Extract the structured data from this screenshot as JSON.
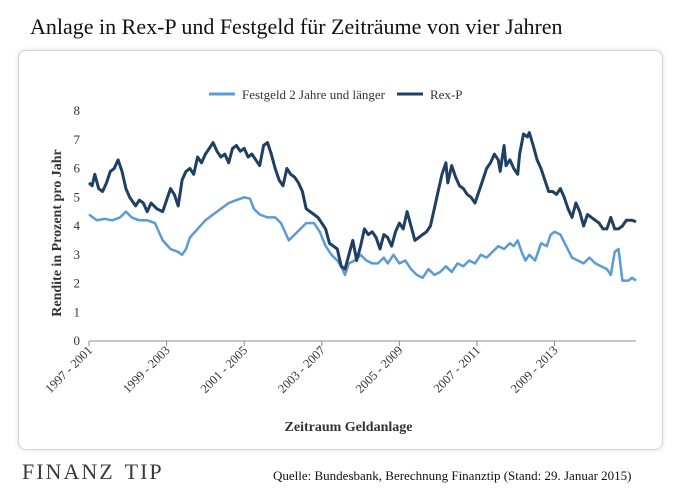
{
  "header": {
    "title": "Anlage  in Rex-P  und Festgeld  für Zeiträume  von vier Jahren"
  },
  "footer": {
    "logo_left": "FINANZ",
    "logo_right": "TIP",
    "source": "Quelle:  Bundesbank, Berechnung Finanztip  (Stand:  29.  Januar 2015)"
  },
  "colors": {
    "festgeld": "#5b9bd5",
    "rexp": "#1f3f63",
    "axis": "#888888",
    "text": "#333333"
  },
  "chart_data": {
    "type": "line",
    "title": "Anlage  in Rex-P  und Festgeld  für Zeiträume  von vier Jahren",
    "xlabel": "Zeitraum Geldanlage",
    "ylabel": "Rendite in Prozent  pro Jahr",
    "ylim": [
      0,
      8
    ],
    "yticks": [
      0,
      1,
      2,
      3,
      4,
      5,
      6,
      7,
      8
    ],
    "xlim": [
      1997,
      2011.1
    ],
    "xticks": [
      {
        "x": 1997,
        "label": "1997 - 2001"
      },
      {
        "x": 1999,
        "label": "1999 - 2003"
      },
      {
        "x": 2001,
        "label": "2001 - 2005"
      },
      {
        "x": 2003,
        "label": "2003 - 2007"
      },
      {
        "x": 2005,
        "label": "2005 - 2009"
      },
      {
        "x": 2007,
        "label": "2007 - 2011"
      },
      {
        "x": 2009,
        "label": "2009 - 2013"
      }
    ],
    "legend_position": "top",
    "series": [
      {
        "name": "Festgeld 2 Jahre und länger",
        "color": "#5b9bd5",
        "points": [
          [
            1997.0,
            4.4
          ],
          [
            1997.2,
            4.2
          ],
          [
            1997.4,
            4.25
          ],
          [
            1997.6,
            4.2
          ],
          [
            1997.8,
            4.3
          ],
          [
            1997.95,
            4.5
          ],
          [
            1998.1,
            4.3
          ],
          [
            1998.3,
            4.2
          ],
          [
            1998.5,
            4.2
          ],
          [
            1998.7,
            4.1
          ],
          [
            1998.8,
            3.8
          ],
          [
            1998.9,
            3.5
          ],
          [
            1999.1,
            3.2
          ],
          [
            1999.3,
            3.1
          ],
          [
            1999.4,
            3.0
          ],
          [
            1999.5,
            3.2
          ],
          [
            1999.6,
            3.6
          ],
          [
            1999.8,
            3.9
          ],
          [
            2000.0,
            4.2
          ],
          [
            2000.2,
            4.4
          ],
          [
            2000.4,
            4.6
          ],
          [
            2000.6,
            4.8
          ],
          [
            2000.8,
            4.9
          ],
          [
            2001.0,
            5.0
          ],
          [
            2001.15,
            4.95
          ],
          [
            2001.25,
            4.6
          ],
          [
            2001.4,
            4.4
          ],
          [
            2001.6,
            4.3
          ],
          [
            2001.8,
            4.3
          ],
          [
            2001.95,
            4.1
          ],
          [
            2002.05,
            3.8
          ],
          [
            2002.15,
            3.5
          ],
          [
            2002.3,
            3.7
          ],
          [
            2002.45,
            3.9
          ],
          [
            2002.6,
            4.1
          ],
          [
            2002.8,
            4.1
          ],
          [
            2002.95,
            3.8
          ],
          [
            2003.1,
            3.3
          ],
          [
            2003.25,
            3.0
          ],
          [
            2003.4,
            2.8
          ],
          [
            2003.5,
            2.6
          ],
          [
            2003.6,
            2.3
          ],
          [
            2003.7,
            2.7
          ],
          [
            2003.85,
            2.8
          ],
          [
            2004.0,
            3.0
          ],
          [
            2004.15,
            2.8
          ],
          [
            2004.3,
            2.7
          ],
          [
            2004.45,
            2.7
          ],
          [
            2004.6,
            2.9
          ],
          [
            2004.7,
            2.7
          ],
          [
            2004.85,
            3.0
          ],
          [
            2005.0,
            2.7
          ],
          [
            2005.15,
            2.8
          ],
          [
            2005.3,
            2.5
          ],
          [
            2005.45,
            2.3
          ],
          [
            2005.6,
            2.2
          ],
          [
            2005.75,
            2.5
          ],
          [
            2005.9,
            2.3
          ],
          [
            2006.05,
            2.4
          ],
          [
            2006.2,
            2.6
          ],
          [
            2006.35,
            2.4
          ],
          [
            2006.5,
            2.7
          ],
          [
            2006.65,
            2.6
          ],
          [
            2006.8,
            2.8
          ],
          [
            2006.95,
            2.7
          ],
          [
            2007.1,
            3.0
          ],
          [
            2007.25,
            2.9
          ],
          [
            2007.4,
            3.1
          ],
          [
            2007.55,
            3.3
          ],
          [
            2007.7,
            3.2
          ],
          [
            2007.85,
            3.4
          ],
          [
            2007.95,
            3.3
          ],
          [
            2008.05,
            3.5
          ],
          [
            2008.15,
            3.1
          ],
          [
            2008.25,
            2.8
          ],
          [
            2008.35,
            3.0
          ],
          [
            2008.5,
            2.8
          ],
          [
            2008.65,
            3.4
          ],
          [
            2008.8,
            3.3
          ],
          [
            2008.9,
            3.7
          ],
          [
            2009.0,
            3.8
          ],
          [
            2009.15,
            3.7
          ],
          [
            2009.3,
            3.3
          ],
          [
            2009.45,
            2.9
          ],
          [
            2009.6,
            2.8
          ],
          [
            2009.75,
            2.7
          ],
          [
            2009.9,
            2.9
          ],
          [
            2010.05,
            2.7
          ],
          [
            2010.2,
            2.6
          ],
          [
            2010.35,
            2.5
          ],
          [
            2010.45,
            2.3
          ],
          [
            2010.55,
            3.1
          ],
          [
            2010.65,
            3.2
          ],
          [
            2010.75,
            2.1
          ],
          [
            2010.9,
            2.1
          ],
          [
            2011.0,
            2.2
          ],
          [
            2011.1,
            2.1
          ]
        ]
      },
      {
        "name": "Rex-P",
        "color": "#1f3f63",
        "points": [
          [
            1997.0,
            5.5
          ],
          [
            1997.08,
            5.4
          ],
          [
            1997.15,
            5.8
          ],
          [
            1997.25,
            5.3
          ],
          [
            1997.35,
            5.2
          ],
          [
            1997.45,
            5.5
          ],
          [
            1997.55,
            5.9
          ],
          [
            1997.65,
            6.0
          ],
          [
            1997.75,
            6.3
          ],
          [
            1997.85,
            5.9
          ],
          [
            1997.95,
            5.3
          ],
          [
            1998.05,
            5.0
          ],
          [
            1998.2,
            4.7
          ],
          [
            1998.3,
            4.9
          ],
          [
            1998.4,
            4.8
          ],
          [
            1998.5,
            4.5
          ],
          [
            1998.6,
            4.8
          ],
          [
            1998.75,
            4.6
          ],
          [
            1998.9,
            4.5
          ],
          [
            1999.0,
            4.9
          ],
          [
            1999.1,
            5.3
          ],
          [
            1999.2,
            5.1
          ],
          [
            1999.3,
            4.7
          ],
          [
            1999.4,
            5.6
          ],
          [
            1999.5,
            5.9
          ],
          [
            1999.6,
            6.0
          ],
          [
            1999.7,
            5.8
          ],
          [
            1999.8,
            6.4
          ],
          [
            1999.9,
            6.2
          ],
          [
            2000.0,
            6.5
          ],
          [
            2000.1,
            6.7
          ],
          [
            2000.2,
            6.9
          ],
          [
            2000.3,
            6.6
          ],
          [
            2000.4,
            6.4
          ],
          [
            2000.5,
            6.5
          ],
          [
            2000.6,
            6.2
          ],
          [
            2000.7,
            6.7
          ],
          [
            2000.8,
            6.8
          ],
          [
            2000.9,
            6.6
          ],
          [
            2001.0,
            6.7
          ],
          [
            2001.1,
            6.4
          ],
          [
            2001.2,
            6.5
          ],
          [
            2001.3,
            6.3
          ],
          [
            2001.4,
            6.1
          ],
          [
            2001.5,
            6.8
          ],
          [
            2001.6,
            6.9
          ],
          [
            2001.7,
            6.5
          ],
          [
            2001.8,
            6.0
          ],
          [
            2001.9,
            5.6
          ],
          [
            2002.0,
            5.4
          ],
          [
            2002.1,
            6.0
          ],
          [
            2002.2,
            5.8
          ],
          [
            2002.3,
            5.7
          ],
          [
            2002.4,
            5.5
          ],
          [
            2002.5,
            5.2
          ],
          [
            2002.6,
            4.6
          ],
          [
            2002.7,
            4.5
          ],
          [
            2002.8,
            4.4
          ],
          [
            2002.9,
            4.3
          ],
          [
            2003.0,
            4.1
          ],
          [
            2003.1,
            3.9
          ],
          [
            2003.2,
            3.4
          ],
          [
            2003.3,
            3.3
          ],
          [
            2003.4,
            3.2
          ],
          [
            2003.5,
            2.6
          ],
          [
            2003.6,
            2.5
          ],
          [
            2003.7,
            3.0
          ],
          [
            2003.8,
            3.5
          ],
          [
            2003.9,
            2.8
          ],
          [
            2004.0,
            3.3
          ],
          [
            2004.1,
            3.9
          ],
          [
            2004.2,
            3.7
          ],
          [
            2004.3,
            3.8
          ],
          [
            2004.4,
            3.6
          ],
          [
            2004.5,
            3.2
          ],
          [
            2004.6,
            3.7
          ],
          [
            2004.7,
            3.6
          ],
          [
            2004.8,
            3.3
          ],
          [
            2004.9,
            3.8
          ],
          [
            2005.0,
            4.1
          ],
          [
            2005.1,
            3.9
          ],
          [
            2005.2,
            4.5
          ],
          [
            2005.3,
            4.0
          ],
          [
            2005.4,
            3.5
          ],
          [
            2005.5,
            3.6
          ],
          [
            2005.6,
            3.7
          ],
          [
            2005.7,
            3.8
          ],
          [
            2005.8,
            4.0
          ],
          [
            2005.9,
            4.6
          ],
          [
            2006.0,
            5.2
          ],
          [
            2006.1,
            5.8
          ],
          [
            2006.2,
            6.2
          ],
          [
            2006.25,
            5.5
          ],
          [
            2006.35,
            6.1
          ],
          [
            2006.45,
            5.7
          ],
          [
            2006.55,
            5.4
          ],
          [
            2006.65,
            5.3
          ],
          [
            2006.75,
            5.1
          ],
          [
            2006.85,
            5.0
          ],
          [
            2006.95,
            4.8
          ],
          [
            2007.05,
            5.2
          ],
          [
            2007.15,
            5.6
          ],
          [
            2007.25,
            6.0
          ],
          [
            2007.35,
            6.2
          ],
          [
            2007.45,
            6.5
          ],
          [
            2007.55,
            6.3
          ],
          [
            2007.6,
            5.9
          ],
          [
            2007.7,
            6.8
          ],
          [
            2007.75,
            6.1
          ],
          [
            2007.85,
            6.3
          ],
          [
            2007.95,
            6.0
          ],
          [
            2008.05,
            5.8
          ],
          [
            2008.1,
            6.5
          ],
          [
            2008.2,
            7.2
          ],
          [
            2008.3,
            7.1
          ],
          [
            2008.35,
            7.25
          ],
          [
            2008.45,
            6.8
          ],
          [
            2008.55,
            6.3
          ],
          [
            2008.65,
            6.0
          ],
          [
            2008.75,
            5.6
          ],
          [
            2008.85,
            5.2
          ],
          [
            2008.95,
            5.2
          ],
          [
            2009.05,
            5.1
          ],
          [
            2009.15,
            5.3
          ],
          [
            2009.25,
            5.0
          ],
          [
            2009.35,
            4.6
          ],
          [
            2009.45,
            4.3
          ],
          [
            2009.55,
            4.8
          ],
          [
            2009.65,
            4.5
          ],
          [
            2009.75,
            4.0
          ],
          [
            2009.85,
            4.4
          ],
          [
            2009.95,
            4.3
          ],
          [
            2010.05,
            4.2
          ],
          [
            2010.15,
            4.1
          ],
          [
            2010.25,
            3.9
          ],
          [
            2010.35,
            3.9
          ],
          [
            2010.45,
            4.3
          ],
          [
            2010.55,
            3.9
          ],
          [
            2010.65,
            3.9
          ],
          [
            2010.75,
            4.0
          ],
          [
            2010.85,
            4.2
          ],
          [
            2011.0,
            4.2
          ],
          [
            2011.1,
            4.15
          ]
        ]
      }
    ]
  }
}
